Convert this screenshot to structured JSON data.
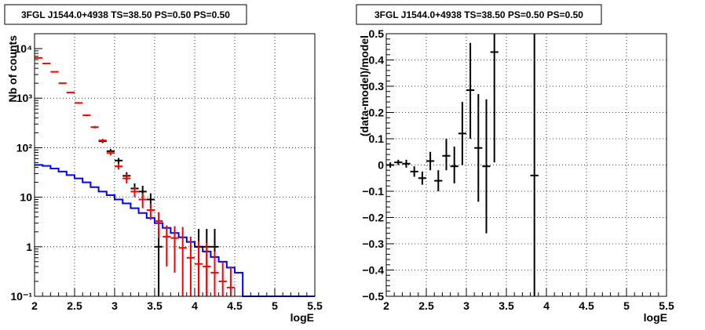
{
  "chart_data": [
    {
      "type": "histogram-log",
      "title": "3FGL J1544.0+4938 TS=38.50 PS=0.50 PS=0.50",
      "xlabel": "logE",
      "ylabel": "Nb of counts",
      "xlim": [
        2,
        5.5
      ],
      "ylim": [
        0.1,
        20000
      ],
      "log_y": true,
      "grid": true,
      "x_ticks": [
        2,
        2.5,
        3,
        3.5,
        4,
        4.5,
        5,
        5.5
      ],
      "x_tick_labels": [
        "2",
        "2.5",
        "3",
        "3.5",
        "4",
        "4.5",
        "5",
        "5.5"
      ],
      "y_ticks": [
        0.1,
        1,
        10,
        100,
        1000,
        10000
      ],
      "y_tick_labels": [
        "10⁻¹",
        "1",
        "10",
        "10²",
        "10³",
        "10⁴"
      ],
      "bin_edges": [
        2.0,
        2.1,
        2.2,
        2.3,
        2.4,
        2.5,
        2.6,
        2.7,
        2.8,
        2.9,
        3.0,
        3.1,
        3.2,
        3.3,
        3.4,
        3.5,
        3.6,
        3.7,
        3.8,
        3.9,
        4.0,
        4.1,
        4.2,
        4.3,
        4.4,
        4.5,
        4.6,
        4.7,
        4.8,
        4.9,
        5.0,
        5.1,
        5.2,
        5.3,
        5.4,
        5.5
      ],
      "series": [
        {
          "style": "blue-step",
          "color": "#0000ff",
          "values": [
            45,
            43,
            38,
            33,
            28,
            24,
            20,
            16,
            13,
            11,
            9,
            7.5,
            6,
            4.8,
            3.8,
            3.0,
            2.4,
            1.9,
            1.55,
            1.25,
            1.0,
            0.8,
            0.62,
            0.5,
            0.38,
            0.3,
            0.1,
            0.1,
            0.1,
            0.1,
            0.1,
            0.1,
            0.1,
            0.1,
            0.1
          ]
        },
        {
          "style": "black-points",
          "color": "#000000",
          "points": [
            {
              "x": 2.85,
              "y": 135,
              "lo": 124,
              "hi": 147
            },
            {
              "x": 2.95,
              "y": 85,
              "lo": 76,
              "hi": 94
            },
            {
              "x": 3.05,
              "y": 55,
              "lo": 48,
              "hi": 62
            },
            {
              "x": 3.15,
              "y": 27,
              "lo": 22,
              "hi": 32
            },
            {
              "x": 3.25,
              "y": 15,
              "lo": 11,
              "hi": 19
            },
            {
              "x": 3.35,
              "y": 13,
              "lo": 9.5,
              "hi": 17
            },
            {
              "x": 3.45,
              "y": 9,
              "lo": 6,
              "hi": 12
            },
            {
              "x": 3.55,
              "y": 1,
              "lo": 0.1,
              "hi": 2.3
            },
            {
              "x": 4.05,
              "y": 1,
              "lo": 0.1,
              "hi": 2.3
            },
            {
              "x": 4.15,
              "y": 1,
              "lo": 0.1,
              "hi": 2.3
            },
            {
              "x": 4.25,
              "y": 1,
              "lo": 0.1,
              "hi": 2.3
            }
          ]
        },
        {
          "style": "red-points",
          "color": "#ff0000",
          "points": [
            {
              "x": 2.05,
              "y": 6500,
              "lo": 6400,
              "hi": 6600
            },
            {
              "x": 2.15,
              "y": 5000,
              "lo": 4900,
              "hi": 5100
            },
            {
              "x": 2.25,
              "y": 3400,
              "lo": 3320,
              "hi": 3480
            },
            {
              "x": 2.35,
              "y": 2000,
              "lo": 1950,
              "hi": 2050
            },
            {
              "x": 2.45,
              "y": 1300,
              "lo": 1260,
              "hi": 1340
            },
            {
              "x": 2.55,
              "y": 800,
              "lo": 770,
              "hi": 830
            },
            {
              "x": 2.65,
              "y": 450,
              "lo": 430,
              "hi": 470
            },
            {
              "x": 2.75,
              "y": 260,
              "lo": 245,
              "hi": 275
            },
            {
              "x": 2.85,
              "y": 140,
              "lo": 129,
              "hi": 151
            },
            {
              "x": 2.95,
              "y": 78,
              "lo": 70,
              "hi": 86
            },
            {
              "x": 3.05,
              "y": 42,
              "lo": 36,
              "hi": 48
            },
            {
              "x": 3.15,
              "y": 24,
              "lo": 19,
              "hi": 29
            },
            {
              "x": 3.25,
              "y": 13,
              "lo": 10,
              "hi": 16
            },
            {
              "x": 3.35,
              "y": 9,
              "lo": 6,
              "hi": 12
            },
            {
              "x": 3.45,
              "y": 5.5,
              "lo": 3.5,
              "hi": 7.5
            },
            {
              "x": 3.55,
              "y": 3.3,
              "lo": 1.5,
              "hi": 5
            },
            {
              "x": 3.65,
              "y": 1.6,
              "lo": 0.4,
              "hi": 2.7
            },
            {
              "x": 3.75,
              "y": 1.5,
              "lo": 0.3,
              "hi": 2.6
            },
            {
              "x": 3.85,
              "y": 0.95,
              "lo": 0.1,
              "hi": 2.5
            },
            {
              "x": 3.95,
              "y": 0.6,
              "lo": 0.1,
              "hi": 1.6
            },
            {
              "x": 4.05,
              "y": 0.45,
              "lo": 0.1,
              "hi": 1.3
            },
            {
              "x": 4.15,
              "y": 0.4,
              "lo": 0.1,
              "hi": 1.2
            },
            {
              "x": 4.25,
              "y": 0.3,
              "lo": 0.1,
              "hi": 0.8
            },
            {
              "x": 4.35,
              "y": 0.2,
              "lo": 0.1,
              "hi": 0.5
            },
            {
              "x": 4.45,
              "y": 0.15,
              "lo": 0.1,
              "hi": 0.4
            }
          ]
        }
      ]
    },
    {
      "type": "errorbar",
      "title": "3FGL J1544.0+4938 TS=38.50 PS=0.50 PS=0.50",
      "xlabel": "logE",
      "ylabel": "(data-model)/model",
      "xlim": [
        2,
        5.5
      ],
      "ylim": [
        -0.5,
        0.5
      ],
      "grid": true,
      "x_ticks": [
        2,
        2.5,
        3,
        3.5,
        4,
        4.5,
        5,
        5.5
      ],
      "x_tick_labels": [
        "2",
        "2.5",
        "3",
        "3.5",
        "4",
        "4.5",
        "5",
        "5.5"
      ],
      "y_ticks": [
        -0.5,
        -0.4,
        -0.3,
        -0.2,
        -0.1,
        0,
        0.1,
        0.2,
        0.3,
        0.4,
        0.5
      ],
      "y_tick_labels": [
        "−0.5",
        "−0.4",
        "−0.3",
        "−0.2",
        "−0.1",
        "0",
        "0.1",
        "0.2",
        "0.3",
        "0.4",
        "0.5"
      ],
      "series": [
        {
          "color": "#000000",
          "points": [
            {
              "x": 2.05,
              "y": 0.0,
              "lo": -0.01,
              "hi": 0.01
            },
            {
              "x": 2.15,
              "y": 0.01,
              "lo": 0.0,
              "hi": 0.02
            },
            {
              "x": 2.25,
              "y": 0.005,
              "lo": -0.01,
              "hi": 0.02
            },
            {
              "x": 2.35,
              "y": -0.025,
              "lo": -0.045,
              "hi": -0.005
            },
            {
              "x": 2.45,
              "y": -0.05,
              "lo": -0.075,
              "hi": -0.025
            },
            {
              "x": 2.55,
              "y": 0.015,
              "lo": -0.02,
              "hi": 0.05
            },
            {
              "x": 2.65,
              "y": -0.06,
              "lo": -0.1,
              "hi": -0.02
            },
            {
              "x": 2.75,
              "y": 0.035,
              "lo": -0.02,
              "hi": 0.1
            },
            {
              "x": 2.85,
              "y": -0.005,
              "lo": -0.07,
              "hi": 0.07
            },
            {
              "x": 2.95,
              "y": 0.12,
              "lo": 0.0,
              "hi": 0.24
            },
            {
              "x": 3.05,
              "y": 0.285,
              "lo": 0.1,
              "hi": 0.465
            },
            {
              "x": 3.15,
              "y": 0.065,
              "lo": -0.14,
              "hi": 0.27
            },
            {
              "x": 3.25,
              "y": -0.005,
              "lo": -0.26,
              "hi": 0.25
            },
            {
              "x": 3.35,
              "y": 0.43,
              "lo": 0.01,
              "hi": 0.5
            },
            {
              "x": 3.85,
              "y": -0.04,
              "lo": -0.5,
              "hi": 0.5
            }
          ]
        }
      ]
    }
  ]
}
